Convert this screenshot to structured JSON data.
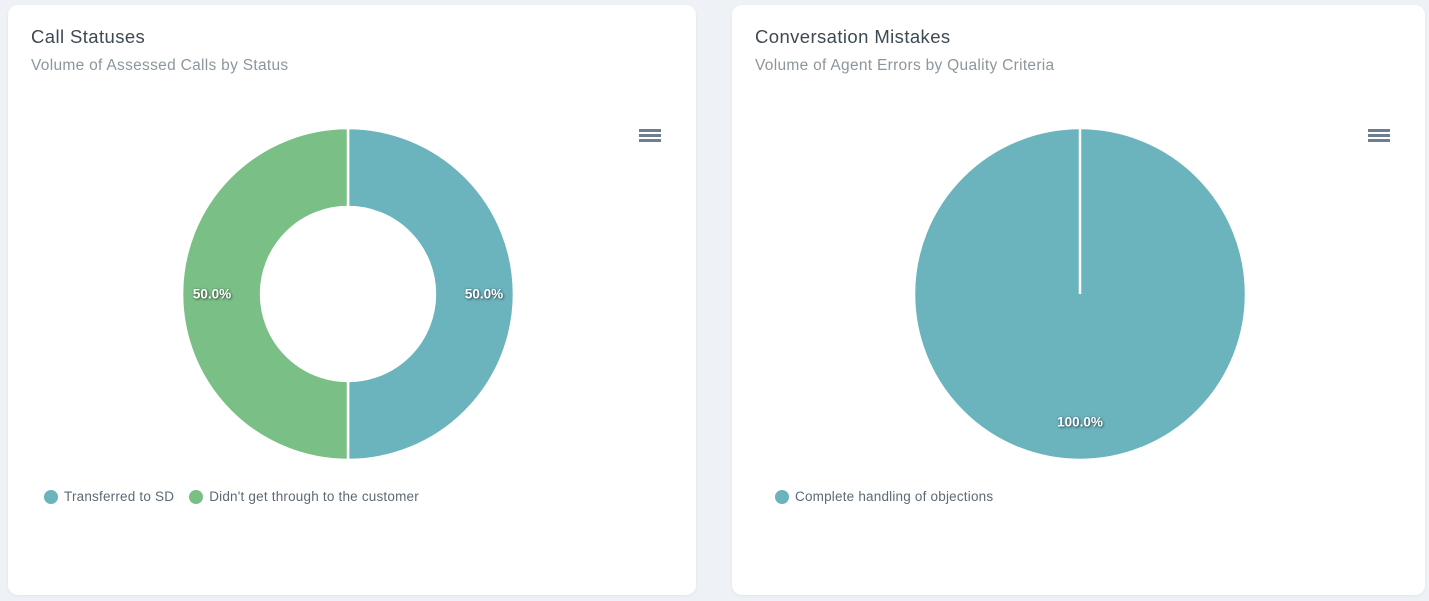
{
  "page": {
    "background_color": "#eef2f7",
    "card_color": "#ffffff"
  },
  "colors": {
    "teal": "#6bb3bd",
    "green": "#7abf86",
    "menu_icon": "#6e7e91",
    "title_text": "#3d4a53",
    "subtitle_text": "#8d969d",
    "legend_text": "#5d6a74"
  },
  "cards": [
    {
      "title": "Call Statuses",
      "subtitle": "Volume of Assessed Calls by Status",
      "menu_icon": "hamburger-menu-icon",
      "legend": [
        {
          "label": "Transferred to SD",
          "color": "#6bb3bd"
        },
        {
          "label": "Didn't get through to the customer",
          "color": "#7abf86"
        }
      ]
    },
    {
      "title": "Conversation Mistakes",
      "subtitle": "Volume of Agent Errors by Quality Criteria",
      "menu_icon": "hamburger-menu-icon",
      "legend": [
        {
          "label": "Complete handling of objections",
          "color": "#6bb3bd"
        }
      ]
    }
  ],
  "chart_data": [
    {
      "type": "pie",
      "variant": "donut",
      "title": "Call Statuses",
      "subtitle": "Volume of Assessed Calls by Status",
      "units": "percent",
      "inner_radius_ratio": 0.52,
      "legend_position": "bottom-left",
      "slices": [
        {
          "name": "Transferred to SD",
          "value": 50.0,
          "label": "50.0%",
          "color": "#6bb3bd"
        },
        {
          "name": "Didn't get through to the customer",
          "value": 50.0,
          "label": "50.0%",
          "color": "#7abf86"
        }
      ]
    },
    {
      "type": "pie",
      "variant": "pie",
      "title": "Conversation Mistakes",
      "subtitle": "Volume of Agent Errors by Quality Criteria",
      "units": "percent",
      "inner_radius_ratio": 0,
      "legend_position": "bottom-left",
      "slices": [
        {
          "name": "Complete handling of objections",
          "value": 100.0,
          "label": "100.0%",
          "color": "#6bb3bd"
        }
      ]
    }
  ]
}
